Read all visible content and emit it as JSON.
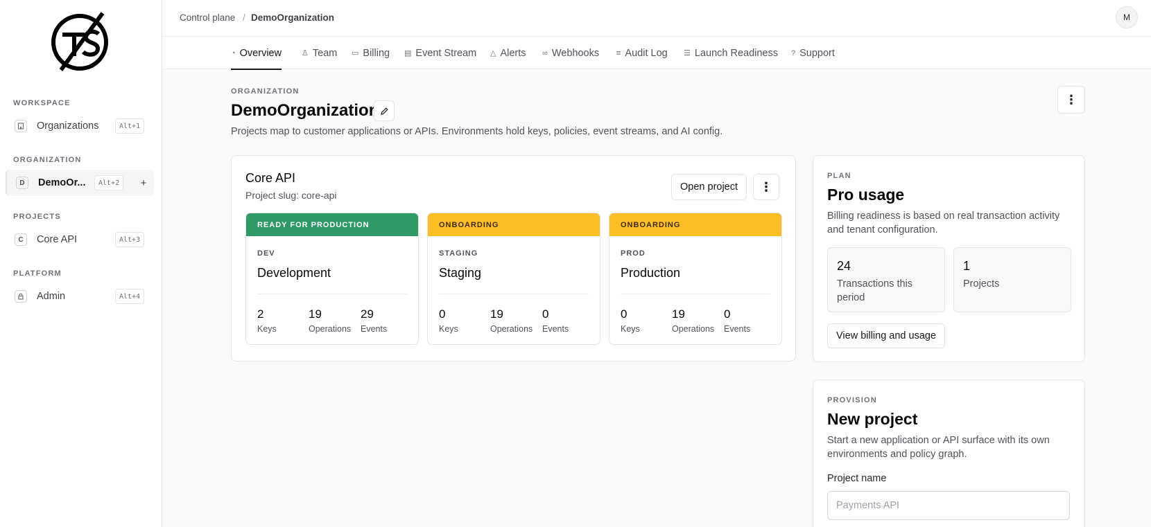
{
  "sidebar": {
    "sections": [
      {
        "heading": "WORKSPACE",
        "item": {
          "icon": "building-icon",
          "label": "Organizations",
          "shortcut": "Alt+1"
        }
      },
      {
        "heading": "ORGANIZATION",
        "item": {
          "icon_letter": "D",
          "label": "DemoOr...",
          "shortcut": "Alt+2"
        }
      },
      {
        "heading": "PROJECTS",
        "item": {
          "icon_letter": "C",
          "label": "Core API",
          "shortcut": "Alt+3"
        }
      },
      {
        "heading": "PLATFORM",
        "item": {
          "icon": "lock-icon",
          "label": "Admin",
          "shortcut": "Alt+4"
        }
      }
    ],
    "add_symbol": "+"
  },
  "header": {
    "breadcrumb": [
      "Control plane",
      "DemoOrganization"
    ],
    "breadcrumb_separator": "/",
    "avatar_initial": "M"
  },
  "tabs": [
    {
      "icon": "gauge-icon",
      "glyph": "◔",
      "label": "Overview"
    },
    {
      "icon": "team-icon",
      "glyph": "♙",
      "label": "Team"
    },
    {
      "icon": "card-icon",
      "glyph": "▭",
      "label": "Billing"
    },
    {
      "icon": "calendar-icon",
      "glyph": "▤",
      "label": "Event Stream"
    },
    {
      "icon": "warning-icon",
      "glyph": "△",
      "label": "Alerts"
    },
    {
      "icon": "link-icon",
      "glyph": "∞",
      "label": "Webhooks"
    },
    {
      "icon": "list-icon",
      "glyph": "≡",
      "label": "Audit Log"
    },
    {
      "icon": "checklist-icon",
      "glyph": "☰",
      "label": "Launch Readiness"
    },
    {
      "icon": "help-icon",
      "glyph": "?",
      "label": "Support"
    }
  ],
  "page": {
    "eyebrow": "ORGANIZATION",
    "title": "DemoOrganization",
    "description": "Projects map to customer applications or APIs. Environments hold keys, policies, event streams, and AI config."
  },
  "project": {
    "title": "Core API",
    "slug": "Project slug: core-api",
    "open_label": "Open project",
    "environments": [
      {
        "status": "READY FOR PRODUCTION",
        "status_kind": "ready",
        "code": "DEV",
        "name": "Development",
        "stats": [
          {
            "value": "2",
            "label": "Keys"
          },
          {
            "value": "19",
            "label": "Operations"
          },
          {
            "value": "29",
            "label": "Events"
          }
        ]
      },
      {
        "status": "ONBOARDING",
        "status_kind": "onb",
        "code": "STAGING",
        "name": "Staging",
        "stats": [
          {
            "value": "0",
            "label": "Keys"
          },
          {
            "value": "19",
            "label": "Operations"
          },
          {
            "value": "0",
            "label": "Events"
          }
        ]
      },
      {
        "status": "ONBOARDING",
        "status_kind": "onb",
        "code": "PROD",
        "name": "Production",
        "stats": [
          {
            "value": "0",
            "label": "Keys"
          },
          {
            "value": "19",
            "label": "Operations"
          },
          {
            "value": "0",
            "label": "Events"
          }
        ]
      }
    ]
  },
  "plan": {
    "eyebrow": "PLAN",
    "title": "Pro usage",
    "description": "Billing readiness is based on real transaction activity and tenant configuration.",
    "metrics": [
      {
        "value": "24",
        "label": "Transactions this period"
      },
      {
        "value": "1",
        "label": "Projects"
      }
    ],
    "button_label": "View billing and usage"
  },
  "provision": {
    "eyebrow": "PROVISION",
    "title": "New project",
    "description": "Start a new application or API surface with its own environments and policy graph.",
    "field_label": "Project name",
    "field_placeholder": "Payments API",
    "field_value": ""
  },
  "colors": {
    "ready": "#2f9a66",
    "onboarding": "#fbbf24"
  }
}
